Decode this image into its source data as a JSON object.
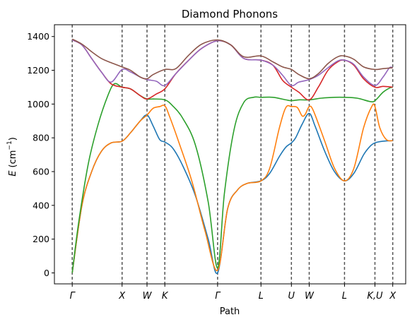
{
  "chart_data": {
    "type": "line",
    "title": "Diamond Phonons",
    "xlabel": "Path",
    "ylabel": "E (cm⁻¹)",
    "ylabel_main": "E",
    "ylabel_unit_prefix": "cm",
    "ylabel_unit_sup": "−1",
    "ylim": [
      -65,
      1470
    ],
    "xlim": [
      -0.55,
      10.3
    ],
    "yticks": [
      0,
      200,
      400,
      600,
      800,
      1000,
      1200,
      1400
    ],
    "xticks": [
      {
        "x": 0,
        "label": "Γ"
      },
      {
        "x": 1.54,
        "label": "X"
      },
      {
        "x": 2.31,
        "label": "W"
      },
      {
        "x": 2.86,
        "label": "K"
      },
      {
        "x": 4.49,
        "label": "Γ"
      },
      {
        "x": 5.83,
        "label": "L"
      },
      {
        "x": 6.77,
        "label": "U"
      },
      {
        "x": 7.32,
        "label": "W"
      },
      {
        "x": 8.41,
        "label": "L"
      },
      {
        "x": 9.35,
        "label": "K,U"
      },
      {
        "x": 9.9,
        "label": "X"
      }
    ],
    "grid": false,
    "series": [
      {
        "color": "#1f77b4",
        "points": [
          [
            0,
            0
          ],
          [
            0.3,
            400
          ],
          [
            0.6,
            600
          ],
          [
            0.9,
            720
          ],
          [
            1.2,
            770
          ],
          [
            1.54,
            780
          ],
          [
            1.8,
            830
          ],
          [
            2.1,
            900
          ],
          [
            2.31,
            935
          ],
          [
            2.5,
            870
          ],
          [
            2.7,
            790
          ],
          [
            2.86,
            775
          ],
          [
            3.1,
            740
          ],
          [
            3.4,
            640
          ],
          [
            3.8,
            460
          ],
          [
            4.2,
            200
          ],
          [
            4.49,
            0
          ],
          [
            4.8,
            380
          ],
          [
            5.1,
            490
          ],
          [
            5.4,
            530
          ],
          [
            5.83,
            545
          ],
          [
            6.1,
            590
          ],
          [
            6.4,
            690
          ],
          [
            6.6,
            745
          ],
          [
            6.77,
            770
          ],
          [
            6.9,
            800
          ],
          [
            7.1,
            880
          ],
          [
            7.32,
            945
          ],
          [
            7.5,
            870
          ],
          [
            7.8,
            720
          ],
          [
            8.1,
            600
          ],
          [
            8.41,
            545
          ],
          [
            8.7,
            590
          ],
          [
            9.0,
            700
          ],
          [
            9.2,
            750
          ],
          [
            9.35,
            770
          ],
          [
            9.6,
            780
          ],
          [
            9.9,
            783
          ]
        ]
      },
      {
        "color": "#ff7f0e",
        "points": [
          [
            0,
            0
          ],
          [
            0.3,
            400
          ],
          [
            0.6,
            600
          ],
          [
            0.9,
            720
          ],
          [
            1.2,
            770
          ],
          [
            1.54,
            780
          ],
          [
            1.8,
            830
          ],
          [
            2.1,
            900
          ],
          [
            2.31,
            935
          ],
          [
            2.5,
            975
          ],
          [
            2.7,
            985
          ],
          [
            2.86,
            990
          ],
          [
            3.0,
            930
          ],
          [
            3.3,
            770
          ],
          [
            3.7,
            540
          ],
          [
            4.1,
            250
          ],
          [
            4.49,
            15
          ],
          [
            4.8,
            380
          ],
          [
            5.1,
            490
          ],
          [
            5.4,
            530
          ],
          [
            5.83,
            545
          ],
          [
            6.1,
            620
          ],
          [
            6.4,
            860
          ],
          [
            6.6,
            980
          ],
          [
            6.77,
            985
          ],
          [
            6.95,
            980
          ],
          [
            7.1,
            930
          ],
          [
            7.2,
            940
          ],
          [
            7.32,
            985
          ],
          [
            7.45,
            960
          ],
          [
            7.8,
            780
          ],
          [
            8.1,
            620
          ],
          [
            8.41,
            545
          ],
          [
            8.7,
            620
          ],
          [
            9.0,
            860
          ],
          [
            9.25,
            985
          ],
          [
            9.35,
            985
          ],
          [
            9.5,
            860
          ],
          [
            9.7,
            790
          ],
          [
            9.9,
            783
          ]
        ]
      },
      {
        "color": "#2ca02c",
        "points": [
          [
            0,
            0
          ],
          [
            0.2,
            300
          ],
          [
            0.5,
            650
          ],
          [
            0.8,
            880
          ],
          [
            1.1,
            1050
          ],
          [
            1.3,
            1120
          ],
          [
            1.54,
            1100
          ],
          [
            1.8,
            1090
          ],
          [
            2.1,
            1050
          ],
          [
            2.31,
            1030
          ],
          [
            2.5,
            1030
          ],
          [
            2.86,
            1025
          ],
          [
            3.1,
            990
          ],
          [
            3.4,
            920
          ],
          [
            3.8,
            760
          ],
          [
            4.2,
            420
          ],
          [
            4.49,
            30
          ],
          [
            4.7,
            470
          ],
          [
            5.0,
            850
          ],
          [
            5.3,
            1010
          ],
          [
            5.6,
            1040
          ],
          [
            5.83,
            1040
          ],
          [
            6.2,
            1040
          ],
          [
            6.6,
            1025
          ],
          [
            6.77,
            1020
          ],
          [
            7.0,
            1025
          ],
          [
            7.32,
            1025
          ],
          [
            7.7,
            1035
          ],
          [
            8.1,
            1040
          ],
          [
            8.41,
            1040
          ],
          [
            8.8,
            1035
          ],
          [
            9.2,
            1015
          ],
          [
            9.35,
            1020
          ],
          [
            9.6,
            1070
          ],
          [
            9.8,
            1095
          ],
          [
            9.9,
            1100
          ]
        ]
      },
      {
        "color": "#d62728",
        "points": [
          [
            0,
            1380
          ],
          [
            0.3,
            1350
          ],
          [
            0.6,
            1270
          ],
          [
            0.9,
            1190
          ],
          [
            1.2,
            1120
          ],
          [
            1.54,
            1100
          ],
          [
            1.8,
            1090
          ],
          [
            2.1,
            1050
          ],
          [
            2.31,
            1030
          ],
          [
            2.6,
            1060
          ],
          [
            2.86,
            1090
          ],
          [
            3.2,
            1180
          ],
          [
            3.6,
            1260
          ],
          [
            4.0,
            1330
          ],
          [
            4.49,
            1375
          ],
          [
            4.9,
            1350
          ],
          [
            5.3,
            1270
          ],
          [
            5.83,
            1260
          ],
          [
            6.2,
            1230
          ],
          [
            6.5,
            1140
          ],
          [
            6.77,
            1100
          ],
          [
            7.0,
            1070
          ],
          [
            7.32,
            1025
          ],
          [
            7.6,
            1100
          ],
          [
            7.9,
            1200
          ],
          [
            8.2,
            1250
          ],
          [
            8.41,
            1260
          ],
          [
            8.7,
            1230
          ],
          [
            9.0,
            1150
          ],
          [
            9.35,
            1100
          ],
          [
            9.6,
            1105
          ],
          [
            9.9,
            1100
          ]
        ]
      },
      {
        "color": "#9467bd",
        "points": [
          [
            0,
            1380
          ],
          [
            0.3,
            1350
          ],
          [
            0.6,
            1270
          ],
          [
            0.9,
            1190
          ],
          [
            1.2,
            1130
          ],
          [
            1.54,
            1205
          ],
          [
            1.8,
            1190
          ],
          [
            2.1,
            1160
          ],
          [
            2.31,
            1145
          ],
          [
            2.6,
            1135
          ],
          [
            2.86,
            1110
          ],
          [
            3.2,
            1180
          ],
          [
            3.6,
            1260
          ],
          [
            4.0,
            1330
          ],
          [
            4.49,
            1375
          ],
          [
            4.9,
            1350
          ],
          [
            5.3,
            1270
          ],
          [
            5.83,
            1260
          ],
          [
            6.2,
            1230
          ],
          [
            6.5,
            1170
          ],
          [
            6.77,
            1110
          ],
          [
            7.0,
            1130
          ],
          [
            7.32,
            1145
          ],
          [
            7.6,
            1170
          ],
          [
            7.9,
            1215
          ],
          [
            8.2,
            1255
          ],
          [
            8.41,
            1260
          ],
          [
            8.7,
            1235
          ],
          [
            9.0,
            1160
          ],
          [
            9.35,
            1110
          ],
          [
            9.6,
            1160
          ],
          [
            9.8,
            1215
          ],
          [
            9.9,
            1215
          ]
        ]
      },
      {
        "color": "#8c564b",
        "points": [
          [
            0,
            1385
          ],
          [
            0.3,
            1355
          ],
          [
            0.6,
            1310
          ],
          [
            0.9,
            1270
          ],
          [
            1.2,
            1245
          ],
          [
            1.54,
            1220
          ],
          [
            1.8,
            1200
          ],
          [
            2.1,
            1160
          ],
          [
            2.31,
            1150
          ],
          [
            2.5,
            1175
          ],
          [
            2.86,
            1205
          ],
          [
            3.2,
            1210
          ],
          [
            3.6,
            1290
          ],
          [
            4.0,
            1355
          ],
          [
            4.49,
            1380
          ],
          [
            4.9,
            1350
          ],
          [
            5.3,
            1280
          ],
          [
            5.83,
            1285
          ],
          [
            6.2,
            1250
          ],
          [
            6.5,
            1220
          ],
          [
            6.77,
            1205
          ],
          [
            7.0,
            1175
          ],
          [
            7.32,
            1150
          ],
          [
            7.6,
            1180
          ],
          [
            7.9,
            1240
          ],
          [
            8.2,
            1280
          ],
          [
            8.41,
            1285
          ],
          [
            8.7,
            1265
          ],
          [
            9.0,
            1220
          ],
          [
            9.35,
            1205
          ],
          [
            9.6,
            1210
          ],
          [
            9.9,
            1215
          ]
        ]
      }
    ]
  }
}
